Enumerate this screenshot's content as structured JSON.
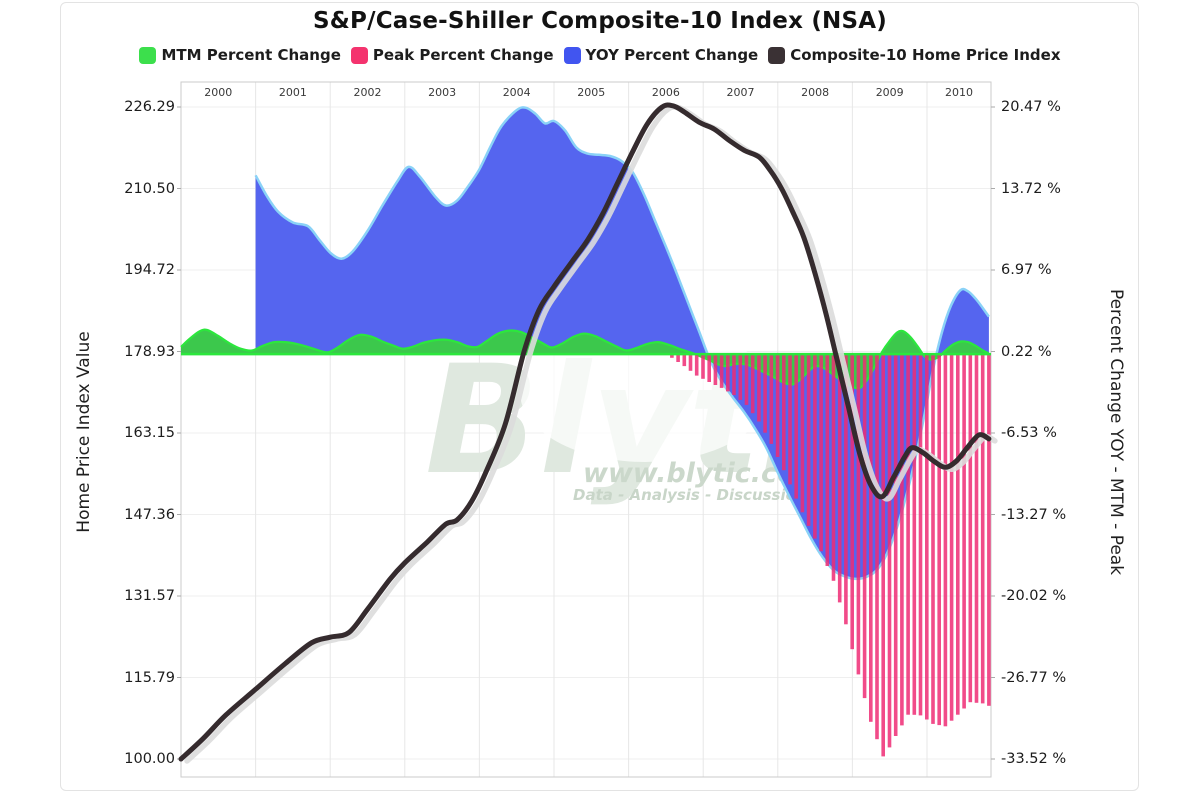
{
  "title": "S&P/Case-Shiller Composite-10 Index (NSA)",
  "legend": [
    {
      "label": "MTM Percent Change",
      "color": "#3cdf4c"
    },
    {
      "label": "Peak Percent Change",
      "color": "#f4336e"
    },
    {
      "label": "YOY Percent Change",
      "color": "#4155f0"
    },
    {
      "label": "Composite-10 Home Price Index",
      "color": "#3a3134"
    }
  ],
  "left_axis": {
    "title": "Home Price Index Value",
    "tick_labels": [
      "226.29",
      "210.50",
      "194.72",
      "178.93",
      "163.15",
      "147.36",
      "131.57",
      "115.79",
      "100.00"
    ],
    "range": [
      100.0,
      226.29
    ]
  },
  "right_axis": {
    "title": "Percent Change YOY - MTM - Peak",
    "tick_labels": [
      "20.47 %",
      "13.72 %",
      "6.97 %",
      "0.22 %",
      "-6.53 %",
      "-13.27 %",
      "-20.02 %",
      "-26.77 %",
      "-33.52 %"
    ],
    "range": [
      -33.52,
      20.47
    ]
  },
  "x_axis": {
    "year_labels": [
      "2000",
      "2001",
      "2002",
      "2003",
      "2004",
      "2005",
      "2006",
      "2007",
      "2008",
      "2009",
      "2010"
    ]
  },
  "watermark": {
    "brand": "Blytic",
    "url": "www.blytic.com",
    "tagline": "Data - Analysis - Discussion"
  },
  "chart_data": {
    "type": "area",
    "x_range": [
      2000.0,
      2010.86
    ],
    "grid": true,
    "legend_position": "top",
    "series": [
      {
        "name": "YOY Percent Change",
        "type": "area",
        "axis": "percent",
        "fill": "#5565ef",
        "stroke": "#8ad2f7",
        "points": [
          [
            2001.0,
            14.8
          ],
          [
            2001.15,
            13.1
          ],
          [
            2001.3,
            11.8
          ],
          [
            2001.5,
            10.9
          ],
          [
            2001.7,
            10.6
          ],
          [
            2001.85,
            9.5
          ],
          [
            2002.0,
            8.4
          ],
          [
            2002.15,
            7.9
          ],
          [
            2002.3,
            8.5
          ],
          [
            2002.5,
            10.2
          ],
          [
            2002.7,
            12.3
          ],
          [
            2002.9,
            14.3
          ],
          [
            2003.05,
            15.5
          ],
          [
            2003.2,
            14.7
          ],
          [
            2003.4,
            13.1
          ],
          [
            2003.55,
            12.3
          ],
          [
            2003.7,
            12.7
          ],
          [
            2003.85,
            13.9
          ],
          [
            2004.0,
            15.3
          ],
          [
            2004.15,
            17.2
          ],
          [
            2004.3,
            18.9
          ],
          [
            2004.5,
            20.2
          ],
          [
            2004.62,
            20.4
          ],
          [
            2004.75,
            19.9
          ],
          [
            2004.88,
            19.1
          ],
          [
            2005.0,
            19.3
          ],
          [
            2005.15,
            18.5
          ],
          [
            2005.3,
            17.1
          ],
          [
            2005.45,
            16.6
          ],
          [
            2005.6,
            16.5
          ],
          [
            2005.75,
            16.4
          ],
          [
            2005.9,
            16.0
          ],
          [
            2006.05,
            15.1
          ],
          [
            2006.2,
            13.3
          ],
          [
            2006.35,
            11.1
          ],
          [
            2006.5,
            8.9
          ],
          [
            2006.65,
            6.6
          ],
          [
            2006.8,
            4.2
          ],
          [
            2006.95,
            1.8
          ],
          [
            2007.1,
            -0.6
          ],
          [
            2007.25,
            -2.3
          ],
          [
            2007.4,
            -3.6
          ],
          [
            2007.55,
            -4.8
          ],
          [
            2007.7,
            -6.2
          ],
          [
            2007.85,
            -7.8
          ],
          [
            2008.0,
            -9.8
          ],
          [
            2008.15,
            -11.7
          ],
          [
            2008.3,
            -13.5
          ],
          [
            2008.45,
            -15.3
          ],
          [
            2008.6,
            -16.8
          ],
          [
            2008.75,
            -17.9
          ],
          [
            2008.9,
            -18.4
          ],
          [
            2009.05,
            -18.6
          ],
          [
            2009.2,
            -18.4
          ],
          [
            2009.35,
            -17.7
          ],
          [
            2009.5,
            -16.0
          ],
          [
            2009.65,
            -13.3
          ],
          [
            2009.8,
            -9.8
          ],
          [
            2009.95,
            -5.5
          ],
          [
            2010.08,
            -1.3
          ],
          [
            2010.2,
            1.8
          ],
          [
            2010.32,
            4.0
          ],
          [
            2010.45,
            5.3
          ],
          [
            2010.55,
            5.2
          ],
          [
            2010.65,
            4.6
          ],
          [
            2010.75,
            3.8
          ],
          [
            2010.83,
            3.1
          ]
        ]
      },
      {
        "name": "MTM Percent Change",
        "type": "area",
        "axis": "percent",
        "fill": "#3cc84c",
        "stroke": "#2ce73d",
        "points": [
          [
            2000.0,
            0.6
          ],
          [
            2000.12,
            1.3
          ],
          [
            2000.25,
            1.9
          ],
          [
            2000.35,
            2.0
          ],
          [
            2000.5,
            1.5
          ],
          [
            2000.65,
            0.9
          ],
          [
            2000.8,
            0.45
          ],
          [
            2000.95,
            0.3
          ],
          [
            2001.1,
            0.7
          ],
          [
            2001.25,
            1.0
          ],
          [
            2001.4,
            1.0
          ],
          [
            2001.55,
            0.85
          ],
          [
            2001.7,
            0.6
          ],
          [
            2001.85,
            0.3
          ],
          [
            2001.97,
            0.15
          ],
          [
            2002.1,
            0.55
          ],
          [
            2002.25,
            1.2
          ],
          [
            2002.4,
            1.6
          ],
          [
            2002.55,
            1.45
          ],
          [
            2002.7,
            1.05
          ],
          [
            2002.85,
            0.7
          ],
          [
            2002.97,
            0.45
          ],
          [
            2003.1,
            0.6
          ],
          [
            2003.25,
            0.95
          ],
          [
            2003.4,
            1.15
          ],
          [
            2003.55,
            1.2
          ],
          [
            2003.7,
            1.0
          ],
          [
            2003.85,
            0.65
          ],
          [
            2003.97,
            0.6
          ],
          [
            2004.1,
            1.1
          ],
          [
            2004.25,
            1.7
          ],
          [
            2004.4,
            1.95
          ],
          [
            2004.55,
            1.85
          ],
          [
            2004.7,
            1.4
          ],
          [
            2004.85,
            0.9
          ],
          [
            2004.97,
            0.55
          ],
          [
            2005.1,
            0.85
          ],
          [
            2005.25,
            1.4
          ],
          [
            2005.4,
            1.7
          ],
          [
            2005.55,
            1.5
          ],
          [
            2005.7,
            1.05
          ],
          [
            2005.85,
            0.6
          ],
          [
            2005.97,
            0.3
          ],
          [
            2006.1,
            0.5
          ],
          [
            2006.25,
            0.85
          ],
          [
            2006.4,
            1.0
          ],
          [
            2006.55,
            0.75
          ],
          [
            2006.7,
            0.4
          ],
          [
            2006.85,
            0.1
          ],
          [
            2006.97,
            -0.2
          ],
          [
            2007.1,
            -0.55
          ],
          [
            2007.2,
            -0.85
          ],
          [
            2007.3,
            -1.0
          ],
          [
            2007.4,
            -0.85
          ],
          [
            2007.5,
            -0.8
          ],
          [
            2007.6,
            -0.9
          ],
          [
            2007.7,
            -1.15
          ],
          [
            2007.8,
            -1.45
          ],
          [
            2007.9,
            -1.75
          ],
          [
            2008.0,
            -2.1
          ],
          [
            2008.1,
            -2.4
          ],
          [
            2008.2,
            -2.5
          ],
          [
            2008.3,
            -2.1
          ],
          [
            2008.4,
            -1.5
          ],
          [
            2008.5,
            -1.0
          ],
          [
            2008.6,
            -1.1
          ],
          [
            2008.7,
            -1.5
          ],
          [
            2008.8,
            -1.95
          ],
          [
            2008.9,
            -2.35
          ],
          [
            2009.0,
            -2.7
          ],
          [
            2009.1,
            -2.8
          ],
          [
            2009.2,
            -2.1
          ],
          [
            2009.3,
            -1.0
          ],
          [
            2009.4,
            0.2
          ],
          [
            2009.5,
            1.1
          ],
          [
            2009.6,
            1.8
          ],
          [
            2009.68,
            1.9
          ],
          [
            2009.78,
            1.4
          ],
          [
            2009.88,
            0.6
          ],
          [
            2009.97,
            -0.2
          ],
          [
            2010.05,
            -0.45
          ],
          [
            2010.15,
            -0.25
          ],
          [
            2010.25,
            0.3
          ],
          [
            2010.35,
            0.8
          ],
          [
            2010.45,
            1.05
          ],
          [
            2010.55,
            1.0
          ],
          [
            2010.65,
            0.7
          ],
          [
            2010.75,
            0.3
          ],
          [
            2010.83,
            0.05
          ]
        ]
      },
      {
        "name": "Peak Percent Change",
        "type": "bar",
        "axis": "percent",
        "fill": "#ee2c74",
        "bar_interval_years": 0.08333,
        "points": [
          [
            2006.58,
            -0.3
          ],
          [
            2006.75,
            -1.0
          ],
          [
            2006.92,
            -1.8
          ],
          [
            2007.08,
            -2.3
          ],
          [
            2007.25,
            -2.8
          ],
          [
            2007.42,
            -3.4
          ],
          [
            2007.58,
            -4.2
          ],
          [
            2007.75,
            -5.6
          ],
          [
            2007.92,
            -7.5
          ],
          [
            2008.08,
            -9.6
          ],
          [
            2008.25,
            -12.0
          ],
          [
            2008.42,
            -14.3
          ],
          [
            2008.58,
            -16.3
          ],
          [
            2008.75,
            -18.8
          ],
          [
            2008.92,
            -22.5
          ],
          [
            2009.08,
            -26.5
          ],
          [
            2009.25,
            -30.5
          ],
          [
            2009.42,
            -33.4
          ],
          [
            2009.58,
            -31.6
          ],
          [
            2009.75,
            -29.8
          ],
          [
            2009.92,
            -29.9
          ],
          [
            2010.08,
            -30.6
          ],
          [
            2010.25,
            -30.8
          ],
          [
            2010.42,
            -29.8
          ],
          [
            2010.58,
            -28.8
          ],
          [
            2010.75,
            -28.9
          ],
          [
            2010.83,
            -29.1
          ]
        ]
      },
      {
        "name": "Composite-10 Home Price Index",
        "type": "line",
        "axis": "index",
        "stroke": "#352b2e",
        "shadow": "#dcdcdc",
        "points": [
          [
            2000.0,
            100.0
          ],
          [
            2000.3,
            104.0
          ],
          [
            2000.6,
            108.5
          ],
          [
            2001.0,
            113.5
          ],
          [
            2001.4,
            118.5
          ],
          [
            2001.75,
            122.5
          ],
          [
            2002.0,
            123.6
          ],
          [
            2002.25,
            124.5
          ],
          [
            2002.5,
            129.0
          ],
          [
            2002.8,
            134.8
          ],
          [
            2003.0,
            138.0
          ],
          [
            2003.3,
            142.0
          ],
          [
            2003.55,
            145.5
          ],
          [
            2003.7,
            146.3
          ],
          [
            2003.9,
            150.0
          ],
          [
            2004.1,
            156.0
          ],
          [
            2004.35,
            165.0
          ],
          [
            2004.6,
            179.0
          ],
          [
            2004.8,
            187.0
          ],
          [
            2005.0,
            191.5
          ],
          [
            2005.25,
            196.5
          ],
          [
            2005.45,
            200.5
          ],
          [
            2005.65,
            205.5
          ],
          [
            2005.85,
            211.5
          ],
          [
            2006.05,
            217.5
          ],
          [
            2006.25,
            223.0
          ],
          [
            2006.45,
            226.3
          ],
          [
            2006.6,
            226.5
          ],
          [
            2006.75,
            225.3
          ],
          [
            2006.95,
            223.3
          ],
          [
            2007.15,
            222.0
          ],
          [
            2007.35,
            219.8
          ],
          [
            2007.55,
            217.9
          ],
          [
            2007.75,
            216.6
          ],
          [
            2007.9,
            214.0
          ],
          [
            2008.05,
            210.5
          ],
          [
            2008.2,
            206.0
          ],
          [
            2008.35,
            201.0
          ],
          [
            2008.5,
            194.0
          ],
          [
            2008.65,
            186.0
          ],
          [
            2008.8,
            177.0
          ],
          [
            2008.95,
            168.0
          ],
          [
            2009.1,
            159.0
          ],
          [
            2009.25,
            153.0
          ],
          [
            2009.4,
            150.8
          ],
          [
            2009.55,
            154.5
          ],
          [
            2009.7,
            158.5
          ],
          [
            2009.8,
            160.3
          ],
          [
            2009.95,
            159.3
          ],
          [
            2010.1,
            157.6
          ],
          [
            2010.25,
            156.5
          ],
          [
            2010.4,
            157.8
          ],
          [
            2010.55,
            160.5
          ],
          [
            2010.7,
            162.8
          ],
          [
            2010.83,
            162.0
          ]
        ]
      }
    ]
  }
}
